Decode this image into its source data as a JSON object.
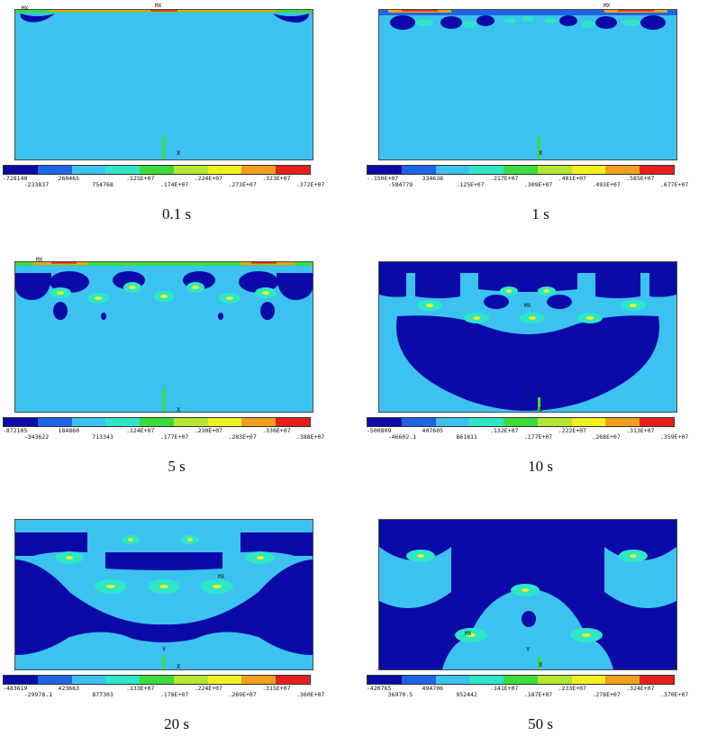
{
  "palette": [
    "#0a0aa8",
    "#1e64e6",
    "#3cc2f0",
    "#2ee6c8",
    "#3cdc3c",
    "#b4e632",
    "#f0f01e",
    "#f0a01e",
    "#e61e1e"
  ],
  "panels": [
    {
      "caption": "0.1 s",
      "ticks_top": [
        "-728140",
        "260465",
        ".125E+07",
        ".224E+07",
        ".323E+07"
      ],
      "ticks_bottom": [
        "-233837",
        "754768",
        ".174E+07",
        ".273E+07",
        ".372E+07"
      ],
      "markers": [
        "MX",
        "MX"
      ],
      "axis": {
        "x": "X"
      }
    },
    {
      "caption": "1 s",
      "ticks_top": [
        "-.150E+07",
        "334638",
        ".217E+07",
        ".401E+07",
        ".585E+07"
      ],
      "ticks_bottom": [
        "-584779",
        ".125E+07",
        ".309E+07",
        ".493E+07",
        ".677E+07"
      ],
      "markers": [
        "MX"
      ],
      "axis": {
        "x": "X"
      }
    },
    {
      "caption": "5 s",
      "ticks_top": [
        "-872105",
        "184860",
        ".124E+07",
        ".230E+07",
        ".336E+07"
      ],
      "ticks_bottom": [
        "-343622",
        "713343",
        ".177E+07",
        ".283E+07",
        ".388E+07"
      ],
      "markers": [
        "MX"
      ],
      "axis": {
        "x": "X"
      }
    },
    {
      "caption": "10 s",
      "ticks_top": [
        "-500809",
        "407605",
        ".132E+07",
        ".222E+07",
        ".313E+07"
      ],
      "ticks_bottom": [
        "-46602.1",
        "861811",
        ".177E+07",
        ".268E+07",
        ".359E+07"
      ],
      "markers": [
        "MX"
      ],
      "axis": {
        "y": "Y",
        "x": "X"
      }
    },
    {
      "caption": "20 s",
      "ticks_top": [
        "-483619",
        "423663",
        ".133E+07",
        ".224E+07",
        ".315E+07"
      ],
      "ticks_bottom": [
        "-29978.1",
        "877303",
        ".178E+07",
        ".269E+07",
        ".360E+07"
      ],
      "markers": [
        "MX"
      ],
      "axis": {
        "y": "Y",
        "x": "X"
      }
    },
    {
      "caption": "50 s",
      "ticks_top": [
        "-420765",
        "494706",
        ".141E+07",
        ".233E+07",
        ".324E+07"
      ],
      "ticks_bottom": [
        "36970.5",
        "952442",
        ".187E+07",
        ".278E+07",
        ".370E+07"
      ],
      "markers": [
        "MX"
      ],
      "axis": {
        "y": "Y",
        "x": "X"
      }
    }
  ]
}
